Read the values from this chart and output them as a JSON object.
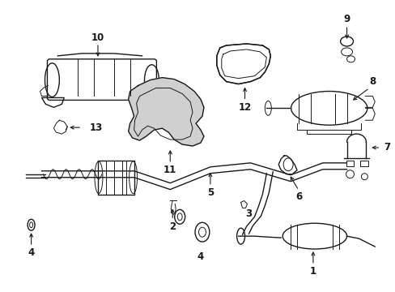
{
  "background_color": "#ffffff",
  "line_color": "#1a1a1a",
  "gray_fill": "#c8c8c8",
  "light_gray": "#e0e0e0"
}
